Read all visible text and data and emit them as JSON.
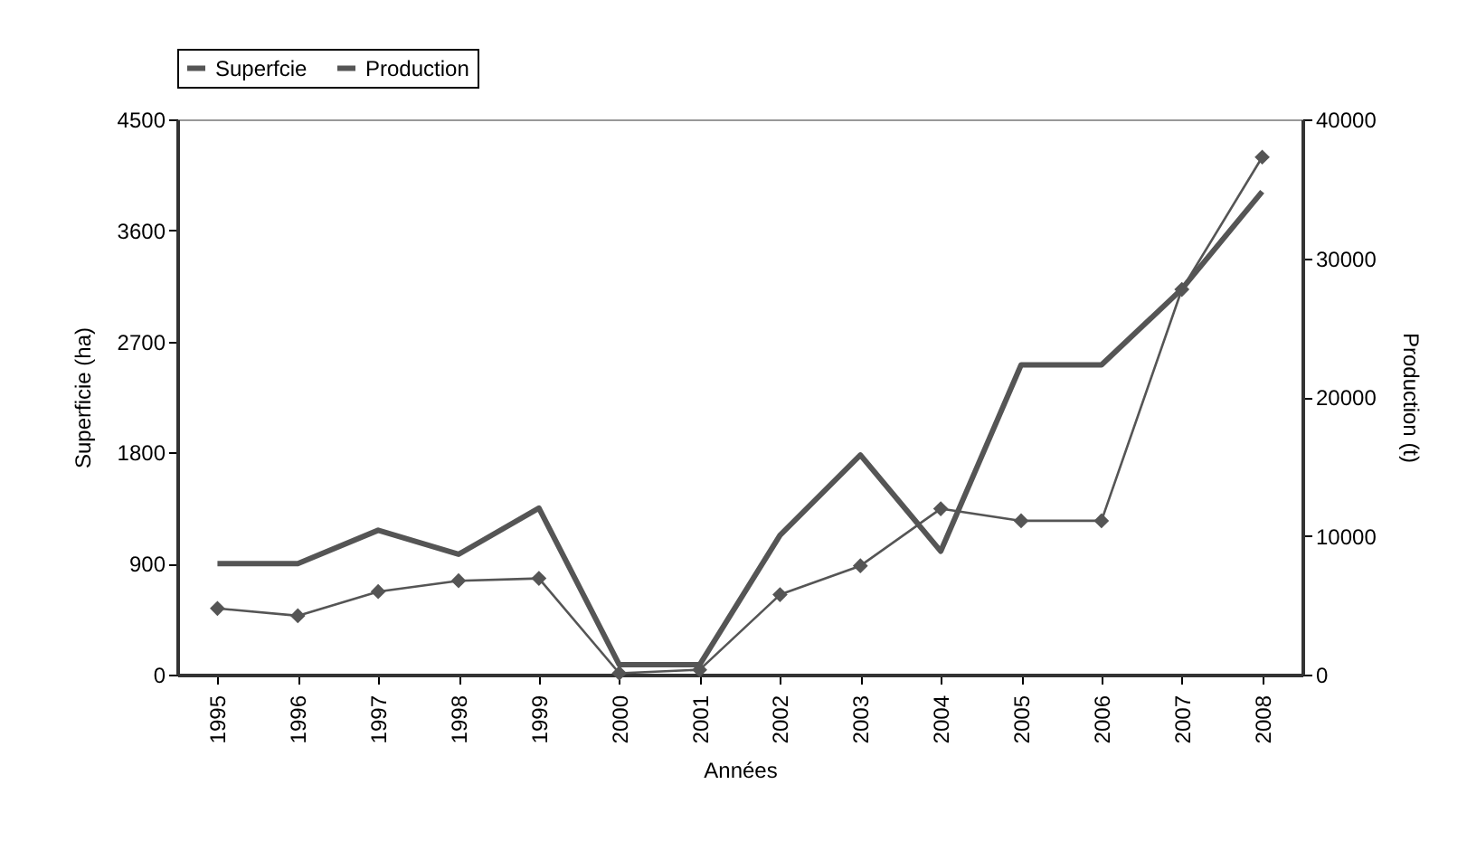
{
  "chart_data": {
    "type": "line",
    "xlabel": "Années",
    "ylabel": "Superficie (ha)",
    "y2label": "Production (t)",
    "categories": [
      "1995",
      "1996",
      "1997",
      "1998",
      "1999",
      "2000",
      "2001",
      "2002",
      "2003",
      "2004",
      "2005",
      "2006",
      "2007",
      "2008"
    ],
    "series": [
      {
        "name": "Superfcie",
        "color": "#555555",
        "marker": "none",
        "values": [
          900,
          900,
          1170,
          975,
          1350,
          80,
          80,
          1130,
          1780,
          1000,
          2510,
          2510,
          3125,
          3915
        ]
      },
      {
        "name": "Production",
        "color": "#555555",
        "marker": "diamond",
        "axis": "y2",
        "values": [
          4770,
          4240,
          5980,
          6760,
          6930,
          100,
          350,
          5760,
          7840,
          11950,
          11080,
          11080,
          27750,
          37280
        ]
      }
    ],
    "ylim": [
      0,
      4500
    ],
    "yticks": [
      0,
      900,
      1800,
      2700,
      3600,
      4500
    ],
    "y2lim": [
      0,
      40000
    ],
    "y2ticks": [
      0,
      10000,
      20000,
      30000,
      40000
    ],
    "grid": false,
    "legend": "top"
  }
}
